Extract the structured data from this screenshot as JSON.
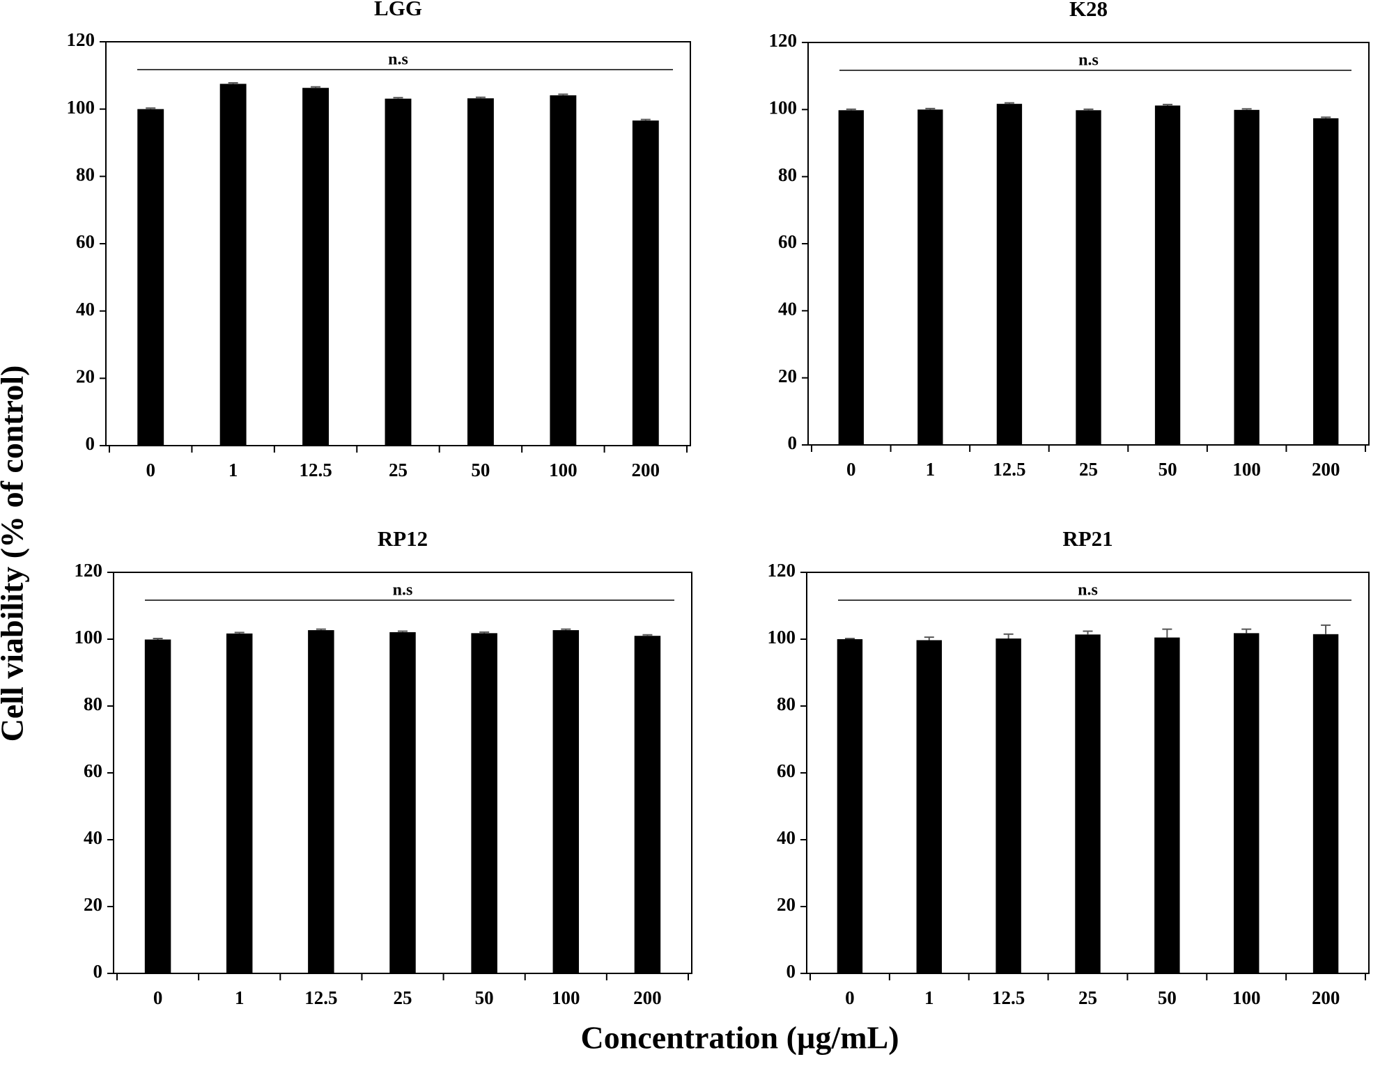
{
  "figure": {
    "ylabel": "Cell viability (% of control)",
    "xlabel": "Concentration (µg/mL)"
  },
  "chart_data": [
    {
      "type": "bar",
      "title": "LGG",
      "annotation": "n.s",
      "color": "#000000",
      "categories": [
        "0",
        "1",
        "12.5",
        "25",
        "50",
        "100",
        "200"
      ],
      "values": [
        100,
        107.5,
        106.3,
        103.1,
        103.2,
        104.1,
        96.6
      ],
      "errors": [
        0.3,
        0.3,
        0.3,
        0.3,
        0.3,
        0.3,
        0.3
      ],
      "ylim": [
        0,
        120
      ],
      "yticks": [
        0,
        20,
        40,
        60,
        80,
        100,
        120
      ]
    },
    {
      "type": "bar",
      "title": "K28",
      "annotation": "n.s",
      "color": "#000000",
      "categories": [
        "0",
        "1",
        "12.5",
        "25",
        "50",
        "100",
        "200"
      ],
      "values": [
        99.8,
        100,
        101.7,
        99.8,
        101.2,
        99.9,
        97.4
      ],
      "errors": [
        0.3,
        0.3,
        0.3,
        0.3,
        0.3,
        0.3,
        0.3
      ],
      "ylim": [
        0,
        120
      ],
      "yticks": [
        0,
        20,
        40,
        60,
        80,
        100,
        120
      ]
    },
    {
      "type": "bar",
      "title": "RP12",
      "annotation": "n.s",
      "color": "#000000",
      "categories": [
        "0",
        "1",
        "12.5",
        "25",
        "50",
        "100",
        "200"
      ],
      "values": [
        99.9,
        101.7,
        102.7,
        102.1,
        101.8,
        102.7,
        101.0
      ],
      "errors": [
        0.3,
        0.3,
        0.3,
        0.3,
        0.3,
        0.3,
        0.3
      ],
      "ylim": [
        0,
        120
      ],
      "yticks": [
        0,
        20,
        40,
        60,
        80,
        100,
        120
      ]
    },
    {
      "type": "bar",
      "title": "RP21",
      "annotation": "n.s",
      "color": "#000000",
      "categories": [
        "0",
        "1",
        "12.5",
        "25",
        "50",
        "100",
        "200"
      ],
      "values": [
        100,
        99.7,
        100.2,
        101.4,
        100.5,
        101.8,
        101.5
      ],
      "errors": [
        0.2,
        0.9,
        1.3,
        1.0,
        2.5,
        1.2,
        2.7
      ],
      "ylim": [
        0,
        120
      ],
      "yticks": [
        0,
        20,
        40,
        60,
        80,
        100,
        120
      ]
    }
  ]
}
